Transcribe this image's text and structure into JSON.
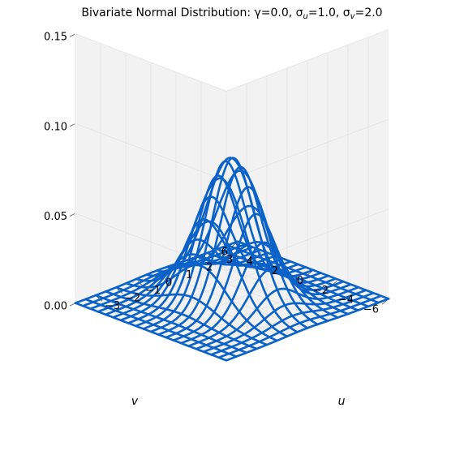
{
  "chart_data": {
    "type": "surface-wireframe",
    "title": "Bivariate Normal Distribution: γ=0.0, σ",
    "title_parts": {
      "sub_u": "u",
      "eq_u": "=1.0, σ",
      "sub_v": "v",
      "eq_v": "=2.0"
    },
    "parameters": {
      "gamma": 0.0,
      "sigma_u": 1.0,
      "sigma_v": 2.0
    },
    "xlabel": "u",
    "ylabel": "v",
    "zlabel": "",
    "xlim": [
      -4,
      4
    ],
    "ylim": [
      -6,
      6
    ],
    "zlim": [
      0,
      0.15
    ],
    "x_ticks": [
      -3,
      -2,
      -1,
      0,
      1,
      2,
      3
    ],
    "x_tick_labels": [
      "−3",
      "−2",
      "−1",
      "0",
      "1",
      "2",
      "3"
    ],
    "y_ticks": [
      -6,
      -4,
      -2,
      0,
      2,
      4,
      6
    ],
    "y_tick_labels": [
      "−6",
      "−4",
      "−2",
      "0",
      "2",
      "4",
      "6"
    ],
    "z_ticks": [
      0.0,
      0.05,
      0.1,
      0.15
    ],
    "z_tick_labels": [
      "0.00",
      "0.05",
      "0.10",
      "0.15"
    ],
    "grid": true,
    "line_color": "#0a62c9",
    "pane_color": "#f2f2f2",
    "u_grid_count": 17,
    "v_grid_count": 21
  }
}
